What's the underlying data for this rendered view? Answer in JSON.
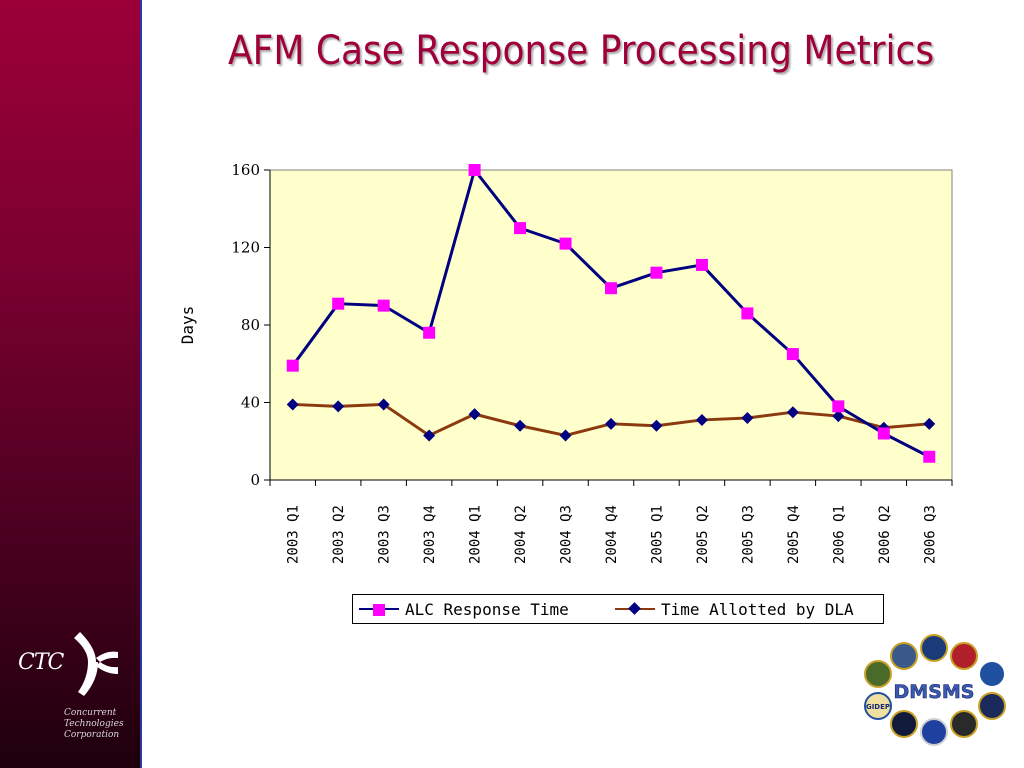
{
  "slide": {
    "title": "AFM Case Response Processing Metrics"
  },
  "logo": {
    "ctc_mark": "CTC",
    "company_lines": [
      "Concurrent",
      "Technologies",
      "Corporation"
    ],
    "sidebar_colors": [
      "#9c0038",
      "#1e000c"
    ]
  },
  "badge": {
    "text": "DMSMS",
    "seal_text": "GIDEP"
  },
  "chart_data": {
    "type": "line",
    "categories": [
      "2003 Q1",
      "2003 Q2",
      "2003 Q3",
      "2003 Q4",
      "2004 Q1",
      "2004 Q2",
      "2004 Q3",
      "2004 Q4",
      "2005 Q1",
      "2005 Q2",
      "2005 Q3",
      "2005 Q4",
      "2006 Q1",
      "2006 Q2",
      "2006 Q3"
    ],
    "series": [
      {
        "name": "ALC Response Time",
        "values": [
          59,
          91,
          90,
          76,
          160,
          130,
          122,
          99,
          107,
          111,
          86,
          65,
          38,
          24,
          12
        ],
        "color": "#000080",
        "marker_color": "#ff00ff",
        "marker": "square"
      },
      {
        "name": "Time Allotted by DLA",
        "values": [
          39,
          38,
          39,
          23,
          34,
          28,
          23,
          29,
          28,
          31,
          32,
          35,
          33,
          27,
          29
        ],
        "color": "#8b3a0f",
        "marker_color": "#000080",
        "marker": "diamond"
      }
    ],
    "title": "",
    "xlabel": "",
    "ylabel": "Days",
    "ylim": [
      0,
      160
    ],
    "yticks": [
      0,
      40,
      80,
      120,
      160
    ],
    "plot_background": "#ffffcc",
    "grid": false,
    "legend_position": "bottom"
  }
}
